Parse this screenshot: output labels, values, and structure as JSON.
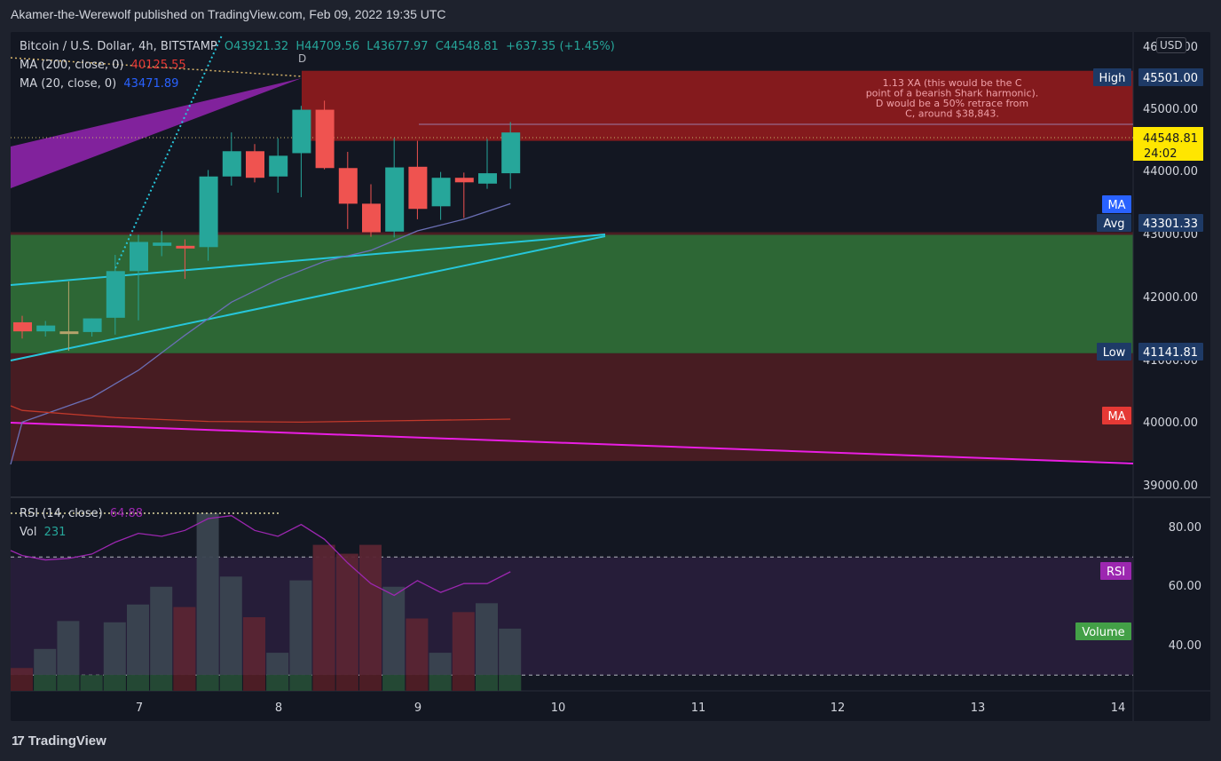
{
  "publisher_line": "Akamer-the-Werewolf published on TradingView.com, Feb 09, 2022 19:35 UTC",
  "currency": "USD",
  "brand": "TradingView",
  "legend": {
    "symbol": "Bitcoin / U.S. Dollar, 4h, BITSTAMP",
    "open": "O43921.32",
    "high": "H44709.56",
    "low": "L43677.97",
    "close": "C44548.81",
    "change": "+637.35 (+1.45%)",
    "ma200_label": "MA (200, close, 0)",
    "ma200_value": "40125.55",
    "ma20_label": "MA (20, close, 0)",
    "ma20_value": "43471.89",
    "rsi_label": "RSI (14, close)",
    "rsi_value": "64.88",
    "vol_label": "Vol",
    "vol_value": "231"
  },
  "annotation": {
    "point_label": "D",
    "lines": [
      "1.13 XA (this would be the C",
      "point of a bearish Shark harmonic).",
      "D would be a 50% retrace from",
      "C, around $38,843."
    ]
  },
  "tags": {
    "high_label": "High",
    "high_value": "45501.00",
    "price_value": "44548.81",
    "countdown": "24:02",
    "ma_label": "MA",
    "avg_label": "Avg",
    "avg_value": "43301.33",
    "low_label": "Low",
    "low_value": "41141.81",
    "ma2_label": "MA",
    "rsi_tag": "RSI",
    "volume_tag": "Volume"
  },
  "colors": {
    "up": "#26a69a",
    "down": "#ef5350",
    "doji": "#b5a36b",
    "ma20": "#2962ff",
    "ma200": "#e53935",
    "rsi": "#9c27b0",
    "trend_magenta": "#e91ee3",
    "trend_cyan": "#26c6da"
  },
  "chart_data": {
    "type": "candlestick",
    "title": "Bitcoin / U.S. Dollar, 4h, BITSTAMP",
    "x_ticks": [
      "7",
      "8",
      "9",
      "10",
      "11",
      "12",
      "13",
      "14"
    ],
    "y_ticks": [
      "46000.00",
      "45000.00",
      "44000.00",
      "43000.00",
      "42000.00",
      "41000.00",
      "40000.00",
      "39000.00"
    ],
    "ylim": [
      38920,
      46100
    ],
    "rsi_ticks": [
      "80.00",
      "60.00",
      "40.00"
    ],
    "rsi_levels": [
      70,
      30
    ],
    "candles": [
      {
        "o": 41620,
        "h": 41720,
        "l": 41370,
        "c": 41480
      },
      {
        "o": 41480,
        "h": 41640,
        "l": 41400,
        "c": 41570
      },
      {
        "o": 41470,
        "h": 42250,
        "l": 41180,
        "c": 41480
      },
      {
        "o": 41470,
        "h": 41680,
        "l": 41400,
        "c": 41680
      },
      {
        "o": 41690,
        "h": 42660,
        "l": 41430,
        "c": 42410
      },
      {
        "o": 42410,
        "h": 42970,
        "l": 41650,
        "c": 42860
      },
      {
        "o": 42800,
        "h": 43030,
        "l": 42640,
        "c": 42850
      },
      {
        "o": 42800,
        "h": 42900,
        "l": 42290,
        "c": 42780
      },
      {
        "o": 42780,
        "h": 43970,
        "l": 42570,
        "c": 43870
      },
      {
        "o": 43870,
        "h": 44550,
        "l": 43730,
        "c": 44260
      },
      {
        "o": 44260,
        "h": 44370,
        "l": 43780,
        "c": 43850
      },
      {
        "o": 43870,
        "h": 44460,
        "l": 43620,
        "c": 44190
      },
      {
        "o": 44230,
        "h": 44960,
        "l": 43550,
        "c": 44900
      },
      {
        "o": 44900,
        "h": 45040,
        "l": 43980,
        "c": 44000
      },
      {
        "o": 44000,
        "h": 44250,
        "l": 43060,
        "c": 43450
      },
      {
        "o": 43450,
        "h": 43750,
        "l": 42940,
        "c": 43010
      },
      {
        "o": 43020,
        "h": 44460,
        "l": 42930,
        "c": 44010
      },
      {
        "o": 44020,
        "h": 44420,
        "l": 43210,
        "c": 43370
      },
      {
        "o": 43410,
        "h": 43940,
        "l": 43200,
        "c": 43850
      },
      {
        "o": 43850,
        "h": 43930,
        "l": 43230,
        "c": 43780
      },
      {
        "o": 43760,
        "h": 44450,
        "l": 43680,
        "c": 43920
      },
      {
        "o": 43920,
        "h": 44710,
        "l": 43680,
        "c": 44549
      }
    ],
    "volume": [
      18,
      33,
      55,
      12,
      54,
      68,
      82,
      66,
      140,
      90,
      58,
      30,
      87,
      115,
      108,
      115,
      82,
      57,
      30,
      62,
      69,
      49
    ],
    "rsi": [
      70.5,
      69,
      69.5,
      71,
      75,
      78,
      77,
      79,
      83,
      84,
      79,
      77,
      81,
      76,
      68,
      61,
      57,
      62,
      58,
      61,
      61,
      65
    ],
    "ma20": [
      {
        "i": 0,
        "v": 40080
      },
      {
        "i": 3,
        "v": 40460
      },
      {
        "i": 5,
        "v": 40880
      },
      {
        "i": 7,
        "v": 41420
      },
      {
        "i": 9,
        "v": 41930
      },
      {
        "i": 11,
        "v": 42280
      },
      {
        "i": 13,
        "v": 42560
      },
      {
        "i": 15,
        "v": 42730
      },
      {
        "i": 17,
        "v": 43030
      },
      {
        "i": 19,
        "v": 43210
      },
      {
        "i": 21,
        "v": 43450
      }
    ],
    "ma200": [
      {
        "i": 0,
        "v": 40260
      },
      {
        "i": 4,
        "v": 40150
      },
      {
        "i": 8,
        "v": 40090
      },
      {
        "i": 12,
        "v": 40080
      },
      {
        "i": 16,
        "v": 40100
      },
      {
        "i": 21,
        "v": 40125.55
      }
    ],
    "zones": [
      {
        "from": 44420,
        "to": 45501.0,
        "color": "#8a1a1e"
      },
      {
        "from": 41141.81,
        "to": 42990,
        "color": "#2e6b37"
      },
      {
        "from": 39480,
        "to": 41141.81,
        "color": "#4a1c23"
      }
    ]
  }
}
